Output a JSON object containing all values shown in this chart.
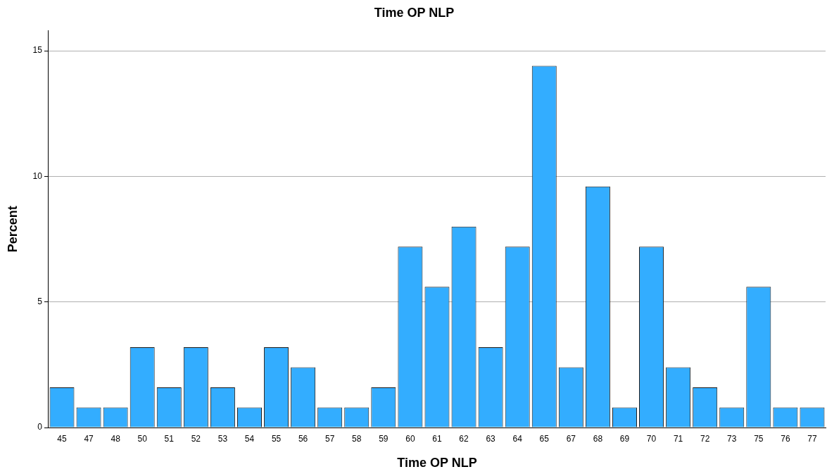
{
  "chart_data": {
    "type": "bar",
    "title": "Time OP NLP",
    "xlabel": "Time OP NLP",
    "ylabel": "Percent",
    "categories": [
      "45",
      "47",
      "48",
      "50",
      "51",
      "52",
      "53",
      "54",
      "55",
      "56",
      "57",
      "58",
      "59",
      "60",
      "61",
      "62",
      "63",
      "64",
      "65",
      "67",
      "68",
      "69",
      "70",
      "71",
      "72",
      "73",
      "75",
      "76",
      "77"
    ],
    "values": [
      1.6,
      0.8,
      0.8,
      3.2,
      1.6,
      3.2,
      1.6,
      0.8,
      3.2,
      2.4,
      0.8,
      0.8,
      1.6,
      7.2,
      5.6,
      8.0,
      3.2,
      7.2,
      14.4,
      2.4,
      9.6,
      0.8,
      7.2,
      2.4,
      1.6,
      0.8,
      5.6,
      0.8,
      0.8
    ],
    "color": "#33adff",
    "ylim": [
      0,
      15.8
    ],
    "yticks": [
      0,
      5,
      10,
      15
    ],
    "grid": "y"
  }
}
